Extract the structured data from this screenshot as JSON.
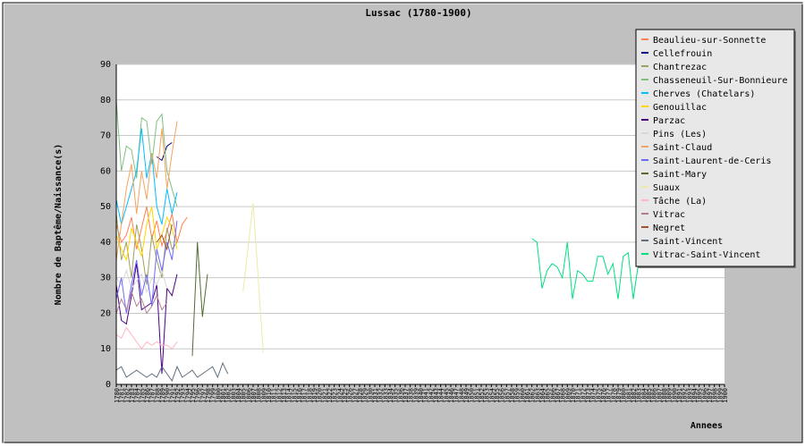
{
  "chart_data": {
    "type": "line",
    "title": "Lussac (1780-1900)",
    "xlabel": "Annees",
    "ylabel": "Nombre de Baptême/Naissance(s)",
    "x_range": [
      1780,
      1900
    ],
    "ylim": [
      0,
      90
    ],
    "y_ticks": [
      0,
      10,
      20,
      30,
      40,
      50,
      60,
      70,
      80,
      90
    ],
    "grid": true,
    "legend_position": "top-right",
    "series": [
      {
        "name": "Beaulieu-sur-Sonnette",
        "color": "#ff7f50",
        "points": [
          [
            1780,
            45
          ],
          [
            1781,
            40
          ],
          [
            1782,
            42
          ],
          [
            1783,
            47
          ],
          [
            1784,
            38
          ],
          [
            1785,
            44
          ],
          [
            1786,
            50
          ],
          [
            1787,
            41
          ],
          [
            1788,
            46
          ],
          [
            1789,
            39
          ],
          [
            1790,
            43
          ],
          [
            1791,
            48
          ],
          [
            1792,
            40
          ],
          [
            1793,
            45
          ],
          [
            1794,
            47
          ]
        ]
      },
      {
        "name": "Cellefrouin",
        "color": "#00008b",
        "points": [
          [
            1788,
            64
          ],
          [
            1789,
            63
          ],
          [
            1790,
            67
          ],
          [
            1791,
            68
          ]
        ]
      },
      {
        "name": "Chantrezac",
        "color": "#a0a060",
        "points": [
          [
            1780,
            48
          ],
          [
            1781,
            35
          ],
          [
            1782,
            40
          ],
          [
            1783,
            30
          ],
          [
            1784,
            45
          ],
          [
            1785,
            38
          ],
          [
            1786,
            28
          ],
          [
            1787,
            42
          ],
          [
            1788,
            35
          ],
          [
            1789,
            30
          ],
          [
            1790,
            44
          ],
          [
            1791,
            38
          ],
          [
            1792,
            40
          ]
        ]
      },
      {
        "name": "Chasseneuil-Sur-Bonnieure",
        "color": "#80c080",
        "points": [
          [
            1780,
            80
          ],
          [
            1781,
            60
          ],
          [
            1782,
            67
          ],
          [
            1783,
            66
          ],
          [
            1784,
            58
          ],
          [
            1785,
            75
          ],
          [
            1786,
            74
          ],
          [
            1787,
            62
          ],
          [
            1788,
            74
          ],
          [
            1789,
            76
          ],
          [
            1790,
            60
          ],
          [
            1791,
            55
          ],
          [
            1792,
            50
          ]
        ]
      },
      {
        "name": "Cherves (Chatelars)",
        "color": "#00bfff",
        "points": [
          [
            1780,
            52
          ],
          [
            1781,
            45
          ],
          [
            1782,
            50
          ],
          [
            1783,
            55
          ],
          [
            1784,
            60
          ],
          [
            1785,
            72
          ],
          [
            1786,
            58
          ],
          [
            1787,
            65
          ],
          [
            1788,
            50
          ],
          [
            1789,
            45
          ],
          [
            1790,
            55
          ],
          [
            1791,
            48
          ],
          [
            1792,
            54
          ]
        ]
      },
      {
        "name": "Genouillac",
        "color": "#ffd700",
        "points": [
          [
            1780,
            42
          ],
          [
            1781,
            38
          ],
          [
            1782,
            35
          ],
          [
            1783,
            44
          ],
          [
            1784,
            40
          ],
          [
            1785,
            36
          ],
          [
            1786,
            45
          ],
          [
            1787,
            50
          ],
          [
            1788,
            38
          ],
          [
            1789,
            42
          ],
          [
            1790,
            47
          ],
          [
            1791,
            44
          ],
          [
            1792,
            38
          ]
        ]
      },
      {
        "name": "Parzac",
        "color": "#4b0082",
        "points": [
          [
            1780,
            28
          ],
          [
            1781,
            18
          ],
          [
            1782,
            17
          ],
          [
            1783,
            25
          ],
          [
            1784,
            34
          ],
          [
            1785,
            21
          ],
          [
            1786,
            22
          ],
          [
            1787,
            23
          ],
          [
            1788,
            28
          ],
          [
            1789,
            3
          ],
          [
            1790,
            27
          ],
          [
            1791,
            25
          ],
          [
            1792,
            31
          ]
        ]
      },
      {
        "name": "Pins (Les)",
        "color": "#d8d8d8",
        "points": [
          [
            1780,
            30
          ],
          [
            1781,
            28
          ],
          [
            1782,
            32
          ],
          [
            1783,
            27
          ],
          [
            1784,
            29
          ],
          [
            1785,
            31
          ],
          [
            1786,
            26
          ],
          [
            1787,
            30
          ],
          [
            1788,
            28
          ],
          [
            1789,
            32
          ],
          [
            1790,
            27
          ]
        ]
      },
      {
        "name": "Saint-Claud",
        "color": "#f4a460",
        "points": [
          [
            1780,
            35
          ],
          [
            1781,
            45
          ],
          [
            1782,
            55
          ],
          [
            1783,
            62
          ],
          [
            1784,
            48
          ],
          [
            1785,
            60
          ],
          [
            1786,
            52
          ],
          [
            1787,
            65
          ],
          [
            1788,
            58
          ],
          [
            1789,
            72
          ],
          [
            1790,
            55
          ],
          [
            1791,
            65
          ],
          [
            1792,
            74
          ]
        ]
      },
      {
        "name": "Saint-Laurent-de-Ceris",
        "color": "#6a6aff",
        "points": [
          [
            1780,
            24
          ],
          [
            1781,
            30
          ],
          [
            1782,
            20
          ],
          [
            1783,
            28
          ],
          [
            1784,
            35
          ],
          [
            1785,
            25
          ],
          [
            1786,
            31
          ],
          [
            1787,
            22
          ],
          [
            1788,
            38
          ],
          [
            1789,
            32
          ],
          [
            1790,
            40
          ],
          [
            1791,
            35
          ],
          [
            1792,
            46
          ]
        ]
      },
      {
        "name": "Saint-Mary",
        "color": "#556b2f",
        "points": [
          [
            1795,
            8
          ],
          [
            1796,
            40
          ],
          [
            1797,
            19
          ],
          [
            1798,
            31
          ]
        ]
      },
      {
        "name": "Suaux",
        "color": "#eee8aa",
        "points": [
          [
            1805,
            26
          ],
          [
            1807,
            51
          ],
          [
            1809,
            9
          ]
        ]
      },
      {
        "name": "Tâche (La)",
        "color": "#ffb6c1",
        "points": [
          [
            1780,
            14
          ],
          [
            1781,
            13
          ],
          [
            1782,
            16
          ],
          [
            1783,
            14
          ],
          [
            1784,
            12
          ],
          [
            1785,
            10
          ],
          [
            1786,
            12
          ],
          [
            1787,
            11
          ],
          [
            1788,
            12
          ],
          [
            1789,
            11
          ],
          [
            1790,
            11
          ],
          [
            1791,
            10
          ],
          [
            1792,
            12
          ]
        ]
      },
      {
        "name": "Vitrac",
        "color": "#b08090",
        "points": [
          [
            1780,
            20
          ],
          [
            1781,
            24
          ],
          [
            1782,
            21
          ],
          [
            1783,
            26
          ],
          [
            1784,
            22
          ],
          [
            1785,
            24
          ],
          [
            1786,
            20
          ],
          [
            1787,
            22
          ],
          [
            1788,
            25
          ],
          [
            1789,
            21
          ],
          [
            1790,
            23
          ]
        ]
      },
      {
        "name": "Negret",
        "color": "#a0522d",
        "points": [
          [
            1788,
            40
          ],
          [
            1789,
            42
          ],
          [
            1790,
            38
          ],
          [
            1791,
            45
          ]
        ]
      },
      {
        "name": "Saint-Vincent",
        "color": "#607080",
        "points": [
          [
            1780,
            4
          ],
          [
            1781,
            5
          ],
          [
            1782,
            2
          ],
          [
            1783,
            3
          ],
          [
            1784,
            4
          ],
          [
            1785,
            3
          ],
          [
            1786,
            2
          ],
          [
            1787,
            3
          ],
          [
            1788,
            2
          ],
          [
            1789,
            5
          ],
          [
            1790,
            3
          ],
          [
            1791,
            1
          ],
          [
            1792,
            5
          ],
          [
            1793,
            2
          ],
          [
            1794,
            3
          ],
          [
            1795,
            4
          ],
          [
            1796,
            2
          ],
          [
            1797,
            3
          ],
          [
            1798,
            4
          ],
          [
            1799,
            5
          ],
          [
            1800,
            2
          ],
          [
            1801,
            6
          ],
          [
            1802,
            3
          ]
        ]
      },
      {
        "name": "Vitrac-Saint-Vincent",
        "color": "#00e080",
        "points": [
          [
            1862,
            41
          ],
          [
            1863,
            40
          ],
          [
            1864,
            27
          ],
          [
            1865,
            32
          ],
          [
            1866,
            34
          ],
          [
            1867,
            33
          ],
          [
            1868,
            30
          ],
          [
            1869,
            40
          ],
          [
            1870,
            24
          ],
          [
            1871,
            32
          ],
          [
            1872,
            31
          ],
          [
            1873,
            29
          ],
          [
            1874,
            29
          ],
          [
            1875,
            36
          ],
          [
            1876,
            36
          ],
          [
            1877,
            31
          ],
          [
            1878,
            34
          ],
          [
            1879,
            24
          ],
          [
            1880,
            36
          ],
          [
            1881,
            37
          ],
          [
            1882,
            24
          ],
          [
            1883,
            34
          ]
        ]
      }
    ]
  }
}
